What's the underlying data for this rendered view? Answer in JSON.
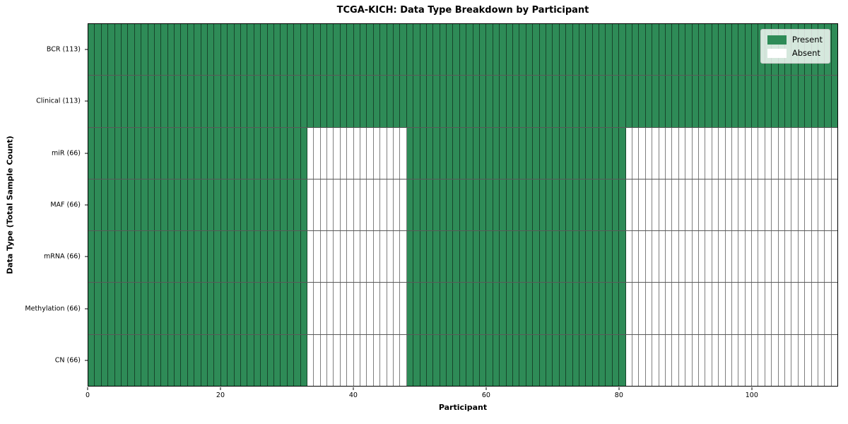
{
  "chart_data": {
    "type": "heatmap",
    "title": "TCGA-KICH: Data Type Breakdown by Participant",
    "xlabel": "Participant",
    "ylabel": "Data Type (Total Sample Count)",
    "n_participants": 113,
    "xlim": [
      0,
      113
    ],
    "x_ticks": [
      0,
      20,
      40,
      60,
      80,
      100
    ],
    "grid": "off",
    "legend": {
      "position": "upper right",
      "entries": [
        {
          "label": "Present",
          "color": "#2e8b57"
        },
        {
          "label": "Absent",
          "color": "#ffffff"
        }
      ]
    },
    "colors": {
      "present": "#2e8b57",
      "absent": "#ffffff",
      "cell_edge": "rgba(0,0,0,0.5)",
      "row_edge": "rgba(0,0,0,0.65)",
      "spine": "#000000"
    },
    "rows": [
      {
        "label": "BCR (113)",
        "total_samples": 113,
        "present_ranges": [
          [
            0,
            113
          ]
        ]
      },
      {
        "label": "Clinical (113)",
        "total_samples": 113,
        "present_ranges": [
          [
            0,
            113
          ]
        ]
      },
      {
        "label": "miR (66)",
        "total_samples": 66,
        "present_ranges": [
          [
            0,
            33
          ],
          [
            48,
            81
          ]
        ]
      },
      {
        "label": "MAF (66)",
        "total_samples": 66,
        "present_ranges": [
          [
            0,
            33
          ],
          [
            48,
            81
          ]
        ]
      },
      {
        "label": "mRNA (66)",
        "total_samples": 66,
        "present_ranges": [
          [
            0,
            33
          ],
          [
            48,
            81
          ]
        ]
      },
      {
        "label": "Methylation (66)",
        "total_samples": 66,
        "present_ranges": [
          [
            0,
            33
          ],
          [
            48,
            81
          ]
        ]
      },
      {
        "label": "CN (66)",
        "total_samples": 66,
        "present_ranges": [
          [
            0,
            33
          ],
          [
            48,
            81
          ]
        ]
      }
    ]
  }
}
